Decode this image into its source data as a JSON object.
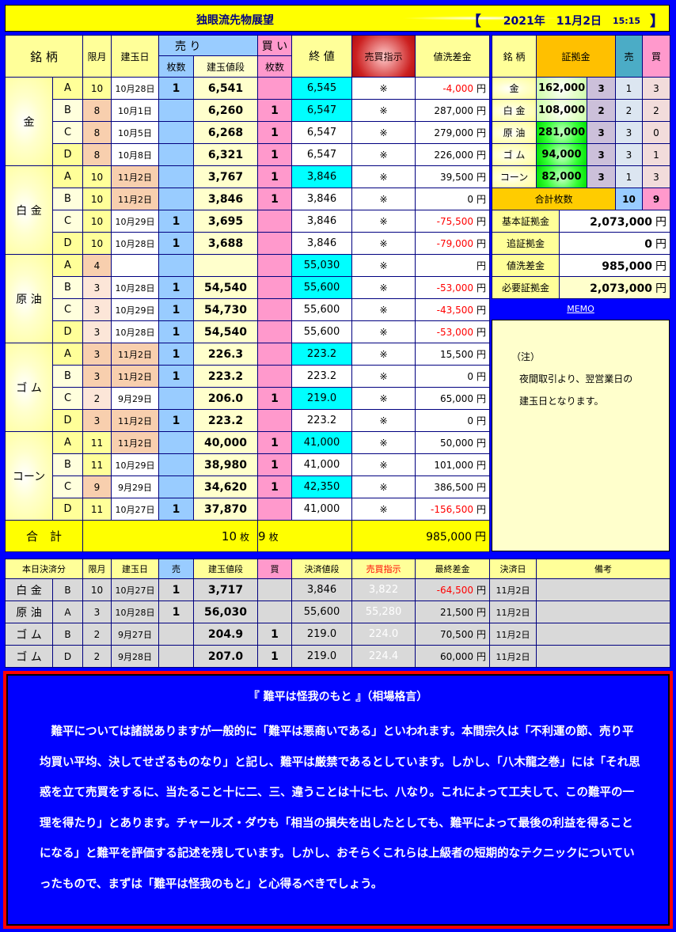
{
  "header": {
    "title": "独眼流先物展望",
    "bracket_open": "【",
    "year": "2021年",
    "date": "11月2日",
    "time": "15:15",
    "bracket_close": "】"
  },
  "main": {
    "headers": {
      "name": "銘 柄",
      "month": "限月",
      "date": "建玉日",
      "sell": "売 り",
      "buy": "買 い",
      "sell_qty": "枚数",
      "price": "建玉値段",
      "buy_qty": "枚数",
      "close": "終 値",
      "signal": "売買指示",
      "diff": "値洗差金"
    },
    "yen": "円",
    "groups": [
      {
        "name": "金",
        "rows": [
          {
            "letter": "A",
            "month": "10",
            "month_hl": "none",
            "date": "10月28日",
            "date_hl": false,
            "sell": "1",
            "price": "6,541",
            "buy": "",
            "close": "6,545",
            "close_hl": true,
            "signal": "※",
            "diff": "-4,000"
          },
          {
            "letter": "B",
            "month": "8",
            "month_hl": "peach",
            "date": "10月1日",
            "date_hl": false,
            "sell": "",
            "price": "6,260",
            "buy": "1",
            "close": "6,547",
            "close_hl": true,
            "signal": "※",
            "diff": "287,000"
          },
          {
            "letter": "C",
            "month": "8",
            "month_hl": "peach",
            "date": "10月5日",
            "date_hl": false,
            "sell": "",
            "price": "6,268",
            "buy": "1",
            "close": "6,547",
            "close_hl": false,
            "signal": "※",
            "diff": "279,000"
          },
          {
            "letter": "D",
            "month": "8",
            "month_hl": "peach",
            "date": "10月8日",
            "date_hl": false,
            "sell": "",
            "price": "6,321",
            "buy": "1",
            "close": "6,547",
            "close_hl": false,
            "signal": "※",
            "diff": "226,000"
          }
        ]
      },
      {
        "name": "白 金",
        "rows": [
          {
            "letter": "A",
            "month": "10",
            "month_hl": "none",
            "date": "11月2日",
            "date_hl": true,
            "sell": "",
            "price": "3,767",
            "buy": "1",
            "close": "3,846",
            "close_hl": true,
            "signal": "※",
            "diff": "39,500"
          },
          {
            "letter": "B",
            "month": "10",
            "month_hl": "none",
            "date": "11月2日",
            "date_hl": true,
            "sell": "",
            "price": "3,846",
            "buy": "1",
            "close": "3,846",
            "close_hl": false,
            "signal": "※",
            "diff": "0"
          },
          {
            "letter": "C",
            "month": "10",
            "month_hl": "none",
            "date": "10月29日",
            "date_hl": false,
            "sell": "1",
            "price": "3,695",
            "buy": "",
            "close": "3,846",
            "close_hl": false,
            "signal": "※",
            "diff": "-75,500"
          },
          {
            "letter": "D",
            "month": "10",
            "month_hl": "none",
            "date": "10月28日",
            "date_hl": false,
            "sell": "1",
            "price": "3,688",
            "buy": "",
            "close": "3,846",
            "close_hl": false,
            "signal": "※",
            "diff": "-79,000"
          }
        ]
      },
      {
        "name": "原 油",
        "rows": [
          {
            "letter": "A",
            "month": "4",
            "month_hl": "peach",
            "date": "",
            "date_hl": false,
            "sell": "",
            "price": "",
            "buy": "",
            "close": "55,030",
            "close_hl": true,
            "signal": "※",
            "diff": ""
          },
          {
            "letter": "B",
            "month": "3",
            "month_hl": "light-peach",
            "date": "10月28日",
            "date_hl": false,
            "sell": "1",
            "price": "54,540",
            "buy": "",
            "close": "55,600",
            "close_hl": true,
            "signal": "※",
            "diff": "-53,000"
          },
          {
            "letter": "C",
            "month": "3",
            "month_hl": "light-peach",
            "date": "10月29日",
            "date_hl": false,
            "sell": "1",
            "price": "54,730",
            "buy": "",
            "close": "55,600",
            "close_hl": false,
            "signal": "※",
            "diff": "-43,500"
          },
          {
            "letter": "D",
            "month": "3",
            "month_hl": "light-peach",
            "date": "10月28日",
            "date_hl": false,
            "sell": "1",
            "price": "54,540",
            "buy": "",
            "close": "55,600",
            "close_hl": false,
            "signal": "※",
            "diff": "-53,000"
          }
        ]
      },
      {
        "name": "ゴ ム",
        "rows": [
          {
            "letter": "A",
            "month": "3",
            "month_hl": "peach",
            "date": "11月2日",
            "date_hl": true,
            "sell": "1",
            "price": "226.3",
            "buy": "",
            "close": "223.2",
            "close_hl": true,
            "signal": "※",
            "diff": "15,500"
          },
          {
            "letter": "B",
            "month": "3",
            "month_hl": "peach",
            "date": "11月2日",
            "date_hl": true,
            "sell": "1",
            "price": "223.2",
            "buy": "",
            "close": "223.2",
            "close_hl": false,
            "signal": "※",
            "diff": "0"
          },
          {
            "letter": "C",
            "month": "2",
            "month_hl": "light-peach",
            "date": "9月29日",
            "date_hl": false,
            "sell": "",
            "price": "206.0",
            "buy": "1",
            "close": "219.0",
            "close_hl": true,
            "signal": "※",
            "diff": "65,000"
          },
          {
            "letter": "D",
            "month": "3",
            "month_hl": "peach",
            "date": "11月2日",
            "date_hl": true,
            "sell": "1",
            "price": "223.2",
            "buy": "",
            "close": "223.2",
            "close_hl": false,
            "signal": "※",
            "diff": "0"
          }
        ]
      },
      {
        "name": "コーン",
        "rows": [
          {
            "letter": "A",
            "month": "11",
            "month_hl": "none",
            "date": "11月2日",
            "date_hl": true,
            "sell": "",
            "price": "40,000",
            "buy": "1",
            "close": "41,000",
            "close_hl": true,
            "signal": "※",
            "diff": "50,000"
          },
          {
            "letter": "B",
            "month": "11",
            "month_hl": "none",
            "date": "10月29日",
            "date_hl": false,
            "sell": "",
            "price": "38,980",
            "buy": "1",
            "close": "41,000",
            "close_hl": false,
            "signal": "※",
            "diff": "101,000"
          },
          {
            "letter": "C",
            "month": "9",
            "month_hl": "peach",
            "date": "9月29日",
            "date_hl": false,
            "sell": "",
            "price": "34,620",
            "buy": "1",
            "close": "42,350",
            "close_hl": true,
            "signal": "※",
            "diff": "386,500"
          },
          {
            "letter": "D",
            "month": "11",
            "month_hl": "none",
            "date": "10月27日",
            "date_hl": false,
            "sell": "1",
            "price": "37,870",
            "buy": "",
            "close": "41,000",
            "close_hl": false,
            "signal": "※",
            "diff": "-156,500"
          }
        ]
      }
    ],
    "total": {
      "label": "合　計",
      "sell": "10",
      "buy": "9",
      "unit": "枚",
      "diff": "985,000"
    }
  },
  "margin": {
    "headers": {
      "name": "銘 柄",
      "margin": "証拠金",
      "sell": "売",
      "buy": "買"
    },
    "rows": [
      {
        "name": "金",
        "margin": "162,000",
        "count": "3",
        "sell": "1",
        "buy": "3",
        "style": "light"
      },
      {
        "name": "白 金",
        "margin": "108,000",
        "count": "2",
        "sell": "2",
        "buy": "2",
        "style": "light"
      },
      {
        "name": "原 油",
        "margin": "281,000",
        "count": "3",
        "sell": "3",
        "buy": "0",
        "style": "green"
      },
      {
        "name": "ゴ ム",
        "margin": "94,000",
        "count": "3",
        "sell": "3",
        "buy": "1",
        "style": "green"
      },
      {
        "name": "コーン",
        "margin": "82,000",
        "count": "3",
        "sell": "1",
        "buy": "3",
        "style": "green"
      }
    ],
    "total": {
      "label": "合計枚数",
      "sell": "10",
      "buy": "9"
    },
    "summary": [
      {
        "label": "基本証拠金",
        "value": "2,073,000"
      },
      {
        "label": "追証拠金",
        "value": "0"
      },
      {
        "label": "値洗差金",
        "value": "985,000"
      },
      {
        "label": "必要証拠金",
        "value": "2,073,000"
      }
    ]
  },
  "memo": {
    "link": "MEMO",
    "lines": [
      "（注）",
      "夜間取引より、翌営業日の",
      "建玉日となります。"
    ]
  },
  "settled": {
    "headers": [
      "本日決済分",
      "限月",
      "建玉日",
      "売",
      "建玉値段",
      "買",
      "決済値段",
      "売買指示",
      "最終差金",
      "決済日",
      "備考"
    ],
    "rows": [
      {
        "name": "白 金",
        "letter": "B",
        "month": "10",
        "date": "10月27日",
        "sell": "1",
        "price": "3,717",
        "buy": "",
        "settle": "3,846",
        "signal": "3,822",
        "diff": "-64,500",
        "settle_date": "11月2日",
        "note": ""
      },
      {
        "name": "原 油",
        "letter": "A",
        "month": "3",
        "date": "10月28日",
        "sell": "1",
        "price": "56,030",
        "buy": "",
        "settle": "55,600",
        "signal": "55,280",
        "diff": "21,500",
        "settle_date": "11月2日",
        "note": ""
      },
      {
        "name": "ゴ ム",
        "letter": "B",
        "month": "2",
        "date": "9月27日",
        "sell": "",
        "price": "204.9",
        "buy": "1",
        "settle": "219.0",
        "signal": "224.0",
        "diff": "70,500",
        "settle_date": "11月2日",
        "note": ""
      },
      {
        "name": "ゴ ム",
        "letter": "D",
        "month": "2",
        "date": "9月28日",
        "sell": "",
        "price": "207.0",
        "buy": "1",
        "settle": "219.0",
        "signal": "224.4",
        "diff": "60,000",
        "settle_date": "11月2日",
        "note": ""
      }
    ]
  },
  "quote": {
    "title": "『 難平は怪我のもと 』（相場格言）",
    "body": "難平については諸説ありますが一般的に「難平は悪商いである」といわれます。本間宗久は「不利運の節、売り平均買い平均、決してせざるものなり」と記し、難平は厳禁であるとしています。しかし、「八木龍之巻」には「それ思惑を立て売買をするに、当たること十に二、三、違うことは十に七、八なり。これによって工夫して、この難平の一理を得たり」とあります。チャールズ・ダウも「相当の損失を出したとしても、難平によって最後の利益を得ることになる」と難平を評価する記述を残しています。しかし、おそらくこれらは上級者の短期的なテクニックについていったもので、まずは「難平は怪我のもと」と心得るべきでしょう。"
  },
  "colors": {
    "background": "#0000ff",
    "sell": "#99ccff",
    "buy": "#ff99cc",
    "close_highlight": "#00ffff",
    "negative": "#ff0000",
    "title_bar": "#ffff00"
  }
}
